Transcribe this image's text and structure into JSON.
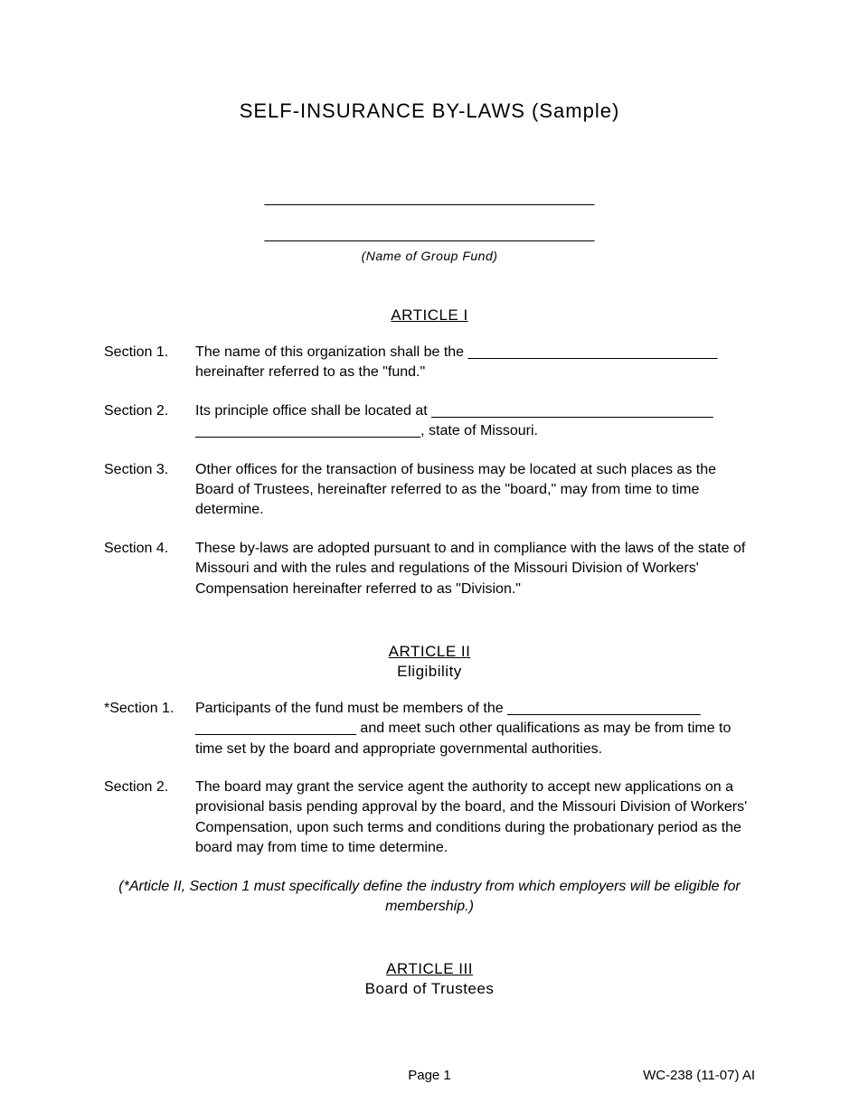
{
  "title": "SELF-INSURANCE BY-LAWS (Sample)",
  "blank_line_1": "_________________________________________",
  "blank_line_2": "_________________________________________",
  "name_label": "(Name of Group Fund)",
  "article1": {
    "header": "ARTICLE I",
    "sections": [
      {
        "label": "Section 1.",
        "text": "The name of this organization shall be the _______________________________ hereinafter referred to as the \"fund.\""
      },
      {
        "label": "Section 2.",
        "text": "Its principle office shall be located at ___________________________________ ____________________________, state of Missouri."
      },
      {
        "label": "Section 3.",
        "text": "Other offices for the transaction of business may be located at such places as the Board of Trustees, hereinafter referred to as the \"board,\" may from time to time determine."
      },
      {
        "label": "Section 4.",
        "text": "These by-laws are adopted pursuant to and in compliance with the laws of the state of Missouri and with the rules and regulations of the Missouri Division of Workers' Compensation hereinafter referred to as \"Division.\""
      }
    ]
  },
  "article2": {
    "header": "ARTICLE II",
    "subtitle": "Eligibility",
    "sections": [
      {
        "label": "*Section 1.",
        "text": "Participants of the fund must be members of  the ________________________ ____________________ and meet such other qualifications as may be from time to time set by the board and appropriate governmental authorities."
      },
      {
        "label": "Section 2.",
        "text": "The board may grant the service agent the authority to accept new applications on a provisional basis pending approval by the board, and the Missouri Division of Workers' Compensation, upon such terms and conditions during the probationary period as the board may from time to time determine."
      }
    ],
    "note": "(*Article II, Section 1 must specifically define the industry from which employers will be eligible for membership.)"
  },
  "article3": {
    "header": "ARTICLE III",
    "subtitle": "Board of Trustees"
  },
  "footer": {
    "page": "Page 1",
    "form_id": "WC-238 (11-07)  AI"
  }
}
